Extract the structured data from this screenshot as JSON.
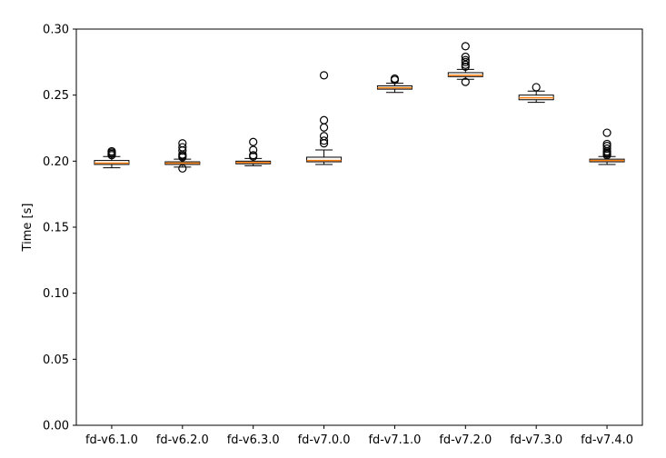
{
  "chart_data": {
    "type": "box",
    "title": "",
    "xlabel": "",
    "ylabel": "Time [s]",
    "ylim": [
      0,
      0.3
    ],
    "yticks": [
      0.0,
      0.05,
      0.1,
      0.15,
      0.2,
      0.25,
      0.3
    ],
    "ytick_labels": [
      "0.00",
      "0.05",
      "0.10",
      "0.15",
      "0.20",
      "0.25",
      "0.30"
    ],
    "grid": false,
    "categories": [
      "fd-v6.1.0",
      "fd-v6.2.0",
      "fd-v6.3.0",
      "fd-v7.0.0",
      "fd-v7.1.0",
      "fd-v7.2.0",
      "fd-v7.3.0",
      "fd-v7.4.0"
    ],
    "colors": {
      "median": "#ff7f0e",
      "box": "#000000"
    },
    "boxes": [
      {
        "label": "fd-v6.1.0",
        "whislo": 0.195,
        "q1": 0.1975,
        "med": 0.1985,
        "q3": 0.2005,
        "whishi": 0.2035,
        "fliers": [
          0.2045,
          0.2055,
          0.2065,
          0.2075
        ]
      },
      {
        "label": "fd-v6.2.0",
        "whislo": 0.1955,
        "q1": 0.1975,
        "med": 0.1985,
        "q3": 0.1995,
        "whishi": 0.2015,
        "fliers": [
          0.1945,
          0.203,
          0.204,
          0.205,
          0.208,
          0.2105,
          0.2135
        ]
      },
      {
        "label": "fd-v6.3.0",
        "whislo": 0.1965,
        "q1": 0.198,
        "med": 0.199,
        "q3": 0.2,
        "whishi": 0.202,
        "fliers": [
          0.2035,
          0.2045,
          0.2085,
          0.2145
        ]
      },
      {
        "label": "fd-v7.0.0",
        "whislo": 0.1975,
        "q1": 0.1995,
        "med": 0.2005,
        "q3": 0.203,
        "whishi": 0.2085,
        "fliers": [
          0.2135,
          0.2155,
          0.219,
          0.2255,
          0.231,
          0.265
        ]
      },
      {
        "label": "fd-v7.1.0",
        "whislo": 0.252,
        "q1": 0.2545,
        "med": 0.2555,
        "q3": 0.257,
        "whishi": 0.259,
        "fliers": [
          0.2615,
          0.2625
        ]
      },
      {
        "label": "fd-v7.2.0",
        "whislo": 0.262,
        "q1": 0.264,
        "med": 0.265,
        "q3": 0.267,
        "whishi": 0.2695,
        "fliers": [
          0.26,
          0.2715,
          0.273,
          0.275,
          0.2765,
          0.279,
          0.287
        ]
      },
      {
        "label": "fd-v7.3.0",
        "whislo": 0.2445,
        "q1": 0.2465,
        "med": 0.248,
        "q3": 0.25,
        "whishi": 0.253,
        "fliers": [
          0.256
        ]
      },
      {
        "label": "fd-v7.4.0",
        "whislo": 0.1975,
        "q1": 0.1995,
        "med": 0.2005,
        "q3": 0.2015,
        "whishi": 0.2035,
        "fliers": [
          0.2045,
          0.2055,
          0.2065,
          0.2075,
          0.2095,
          0.2115,
          0.213,
          0.2215
        ]
      }
    ]
  }
}
